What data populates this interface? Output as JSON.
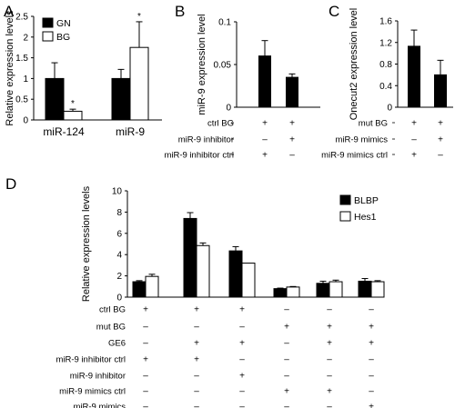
{
  "chart_data": [
    {
      "panel": "A",
      "type": "bar",
      "ylabel": "Relative expression levels",
      "ylim": [
        0,
        2.5
      ],
      "yticks": [
        "0",
        "0.5",
        "1",
        "1.5",
        "2",
        "2.5"
      ],
      "categories": [
        "miR-124",
        "miR-9"
      ],
      "series": [
        {
          "name": "GN",
          "color": "#000000",
          "values": [
            1.0,
            1.0
          ],
          "errors": [
            0.38,
            0.22
          ]
        },
        {
          "name": "BG",
          "color": "#ffffff",
          "values": [
            0.21,
            1.75
          ],
          "errors": [
            0.05,
            0.62
          ]
        }
      ],
      "significance": [
        "*",
        "*"
      ],
      "legend": "top-left"
    },
    {
      "panel": "B",
      "type": "bar",
      "ylabel": "miR-9 expression level",
      "ylim": [
        0,
        0.1
      ],
      "yticks": [
        "0",
        "0.05",
        "0.1"
      ],
      "bar_color": "#000000",
      "values": [
        0.06,
        0.035
      ],
      "errors": [
        0.018,
        0.004
      ],
      "conditions": [
        {
          "label": "ctrl BG",
          "signs": [
            "+",
            "+"
          ]
        },
        {
          "label": "miR-9 inhibitor",
          "signs": [
            "–",
            "+"
          ]
        },
        {
          "label": "miR-9 inhibitor ctrl",
          "signs": [
            "+",
            "–"
          ]
        }
      ]
    },
    {
      "panel": "C",
      "type": "bar",
      "ylabel": "Onecut2 expression level",
      "ylim": [
        0,
        1.6
      ],
      "yticks": [
        "0",
        "0.4",
        "0.8",
        "1.2",
        "1.6"
      ],
      "bar_color": "#000000",
      "values": [
        1.13,
        0.6
      ],
      "errors": [
        0.3,
        0.27
      ],
      "conditions": [
        {
          "label": "mut BG",
          "signs": [
            "+",
            "+"
          ]
        },
        {
          "label": "miR-9 mimics",
          "signs": [
            "–",
            "+"
          ]
        },
        {
          "label": "miR-9 mimics ctrl",
          "signs": [
            "+",
            "–"
          ]
        }
      ]
    },
    {
      "panel": "D",
      "type": "bar",
      "ylabel": "Relative expression levels",
      "ylim": [
        0,
        10
      ],
      "yticks": [
        "0",
        "2",
        "4",
        "6",
        "8",
        "10"
      ],
      "series": [
        {
          "name": "BLBP",
          "color": "#000000",
          "values": [
            1.45,
            7.4,
            4.35,
            0.8,
            1.3,
            1.5
          ],
          "errors": [
            0.1,
            0.55,
            0.4,
            0.05,
            0.2,
            0.25
          ]
        },
        {
          "name": "Hes1",
          "color": "#ffffff",
          "values": [
            1.95,
            4.85,
            3.2,
            0.95,
            1.45,
            1.45
          ],
          "errors": [
            0.2,
            0.25,
            0.0,
            0.05,
            0.15,
            0.1
          ]
        }
      ],
      "conditions": [
        {
          "label": "ctrl BG",
          "signs": [
            "+",
            "+",
            "+",
            "–",
            "–",
            "–"
          ]
        },
        {
          "label": "mut BG",
          "signs": [
            "–",
            "–",
            "–",
            "+",
            "+",
            "+"
          ]
        },
        {
          "label": "GE6",
          "signs": [
            "–",
            "+",
            "+",
            "–",
            "+",
            "+"
          ]
        },
        {
          "label": "miR-9 inhibitor ctrl",
          "signs": [
            "+",
            "+",
            "–",
            "–",
            "–",
            "–"
          ]
        },
        {
          "label": "miR-9 inhibitor",
          "signs": [
            "–",
            "–",
            "+",
            "–",
            "–",
            "–"
          ]
        },
        {
          "label": "miR-9 mimics ctrl",
          "signs": [
            "–",
            "–",
            "–",
            "+",
            "+",
            "–"
          ]
        },
        {
          "label": "miR-9 mimics",
          "signs": [
            "–",
            "–",
            "–",
            "–",
            "–",
            "+"
          ]
        }
      ],
      "legend": "top-right"
    }
  ]
}
